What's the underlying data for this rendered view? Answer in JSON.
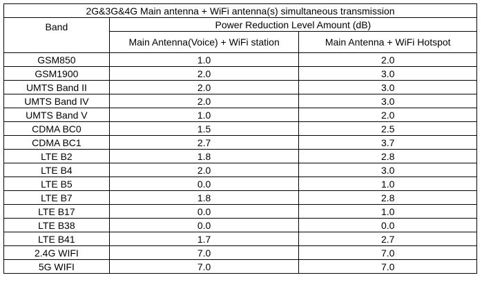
{
  "table": {
    "title": "2G&3G&4G Main antenna + WiFi antenna(s) simultaneous transmission",
    "band_header": "Band",
    "group_header": "Power Reduction Level Amount (dB)",
    "column_headers": [
      "Main Antenna(Voice) + WiFi station",
      "Main Antenna + WiFi Hotspot"
    ],
    "rows": [
      [
        "GSM850",
        "1.0",
        "2.0"
      ],
      [
        "GSM1900",
        "2.0",
        "3.0"
      ],
      [
        "UMTS Band II",
        "2.0",
        "3.0"
      ],
      [
        "UMTS Band IV",
        "2.0",
        "3.0"
      ],
      [
        "UMTS Band V",
        "1.0",
        "2.0"
      ],
      [
        "CDMA BC0",
        "1.5",
        "2.5"
      ],
      [
        "CDMA BC1",
        "2.7",
        "3.7"
      ],
      [
        "LTE B2",
        "1.8",
        "2.8"
      ],
      [
        "LTE B4",
        "2.0",
        "3.0"
      ],
      [
        "LTE B5",
        "0.0",
        "1.0"
      ],
      [
        "LTE B7",
        "1.8",
        "2.8"
      ],
      [
        "LTE B17",
        "0.0",
        "1.0"
      ],
      [
        "LTE B38",
        "0.0",
        "0.0"
      ],
      [
        "LTE B41",
        "1.7",
        "2.7"
      ],
      [
        "2.4G WIFI",
        "7.0",
        "7.0"
      ],
      [
        "5G WIFI",
        "7.0",
        "7.0"
      ]
    ]
  }
}
